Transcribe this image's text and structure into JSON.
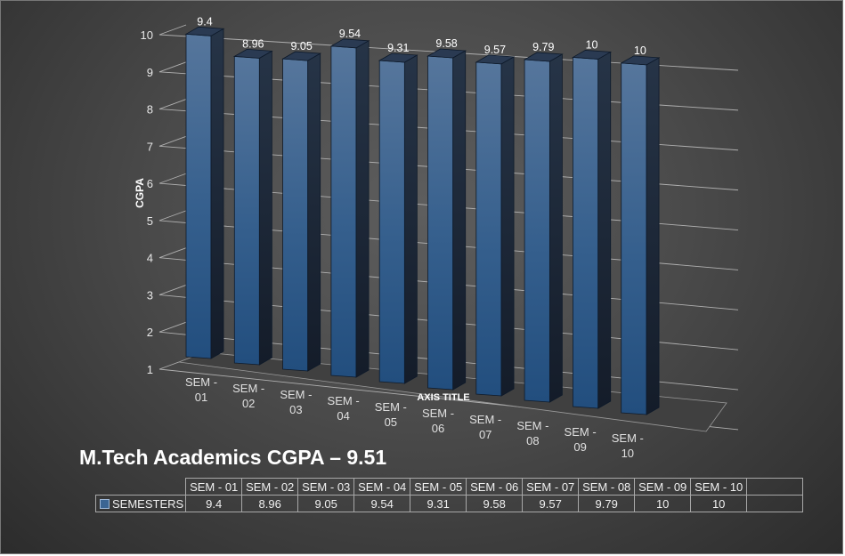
{
  "chart_data": {
    "type": "bar",
    "title": "M.Tech Academics CGPA – 9.51",
    "ylabel": "CGPA",
    "xlabel": "AXIS TITLE",
    "ylim": [
      1,
      10
    ],
    "yticks": [
      "1",
      "2",
      "3",
      "4",
      "5",
      "6",
      "7",
      "8",
      "9",
      "10"
    ],
    "categories": [
      "SEM - 01",
      "SEM - 02",
      "SEM - 03",
      "SEM - 04",
      "SEM - 05",
      "SEM - 06",
      "SEM - 07",
      "SEM - 08",
      "SEM - 09",
      "SEM - 10"
    ],
    "series": [
      {
        "name": "SEMESTERS",
        "values": [
          9.4,
          8.96,
          9.05,
          9.54,
          9.31,
          9.58,
          9.57,
          9.79,
          10,
          10
        ]
      }
    ],
    "value_labels": [
      "9.4",
      "8.96",
      "9.05",
      "9.54",
      "9.31",
      "9.58",
      "9.57",
      "9.79",
      "10",
      "10"
    ],
    "gridlines": true,
    "style": "3d-column",
    "bar_color": "#3b6593",
    "legend": "data-table-below"
  },
  "table": {
    "series_label": "SEMESTERS",
    "headers": [
      "SEM - 01",
      "SEM - 02",
      "SEM - 03",
      "SEM - 04",
      "SEM - 05",
      "SEM - 06",
      "SEM - 07",
      "SEM - 08",
      "SEM - 09",
      "SEM - 10"
    ],
    "values": [
      "9.4",
      "8.96",
      "9.05",
      "9.54",
      "9.31",
      "9.58",
      "9.57",
      "9.79",
      "10",
      "10"
    ]
  }
}
